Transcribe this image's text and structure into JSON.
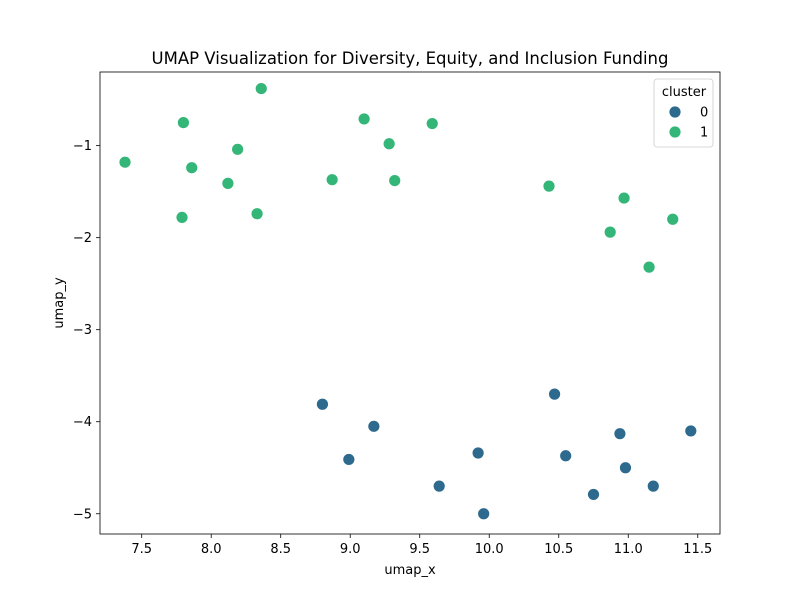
{
  "chart_data": {
    "type": "scatter",
    "title": "UMAP Visualization for Diversity, Equity, and Inclusion Funding",
    "xlabel": "umap_x",
    "ylabel": "umap_y",
    "xlim": [
      7.2,
      11.66
    ],
    "ylim": [
      -5.22,
      -0.2
    ],
    "xticks": [
      7.5,
      8.0,
      8.5,
      9.0,
      9.5,
      10.0,
      10.5,
      11.0,
      11.5
    ],
    "xtick_labels": [
      "7.5",
      "8.0",
      "8.5",
      "9.0",
      "9.5",
      "10.0",
      "10.5",
      "11.0",
      "11.5"
    ],
    "yticks": [
      -1,
      -2,
      -3,
      -4,
      -5
    ],
    "ytick_labels": [
      "−1",
      "−2",
      "−3",
      "−4",
      "−5"
    ],
    "grid": false,
    "legend": {
      "title": "cluster",
      "placement": "top-right",
      "entries": [
        "0",
        "1"
      ]
    },
    "series": [
      {
        "name": "0",
        "color": "#2e6a8e",
        "x": [
          8.8,
          8.99,
          9.17,
          9.64,
          9.92,
          9.96,
          10.47,
          10.55,
          10.75,
          10.94,
          10.98,
          11.18,
          11.45
        ],
        "y": [
          -3.81,
          -4.41,
          -4.05,
          -4.7,
          -4.34,
          -5.0,
          -3.7,
          -4.37,
          -4.79,
          -4.13,
          -4.5,
          -4.7,
          -4.1
        ]
      },
      {
        "name": "1",
        "color": "#33b677",
        "x": [
          7.38,
          7.79,
          7.8,
          7.86,
          8.12,
          8.19,
          8.33,
          8.36,
          8.87,
          9.1,
          9.28,
          9.32,
          9.59,
          10.43,
          10.87,
          10.97,
          11.15,
          11.32
        ],
        "y": [
          -1.18,
          -1.78,
          -0.75,
          -1.24,
          -1.41,
          -1.04,
          -1.74,
          -0.38,
          -1.37,
          -0.71,
          -0.98,
          -1.38,
          -0.76,
          -1.44,
          -1.94,
          -1.57,
          -2.32,
          -1.8
        ]
      }
    ]
  }
}
